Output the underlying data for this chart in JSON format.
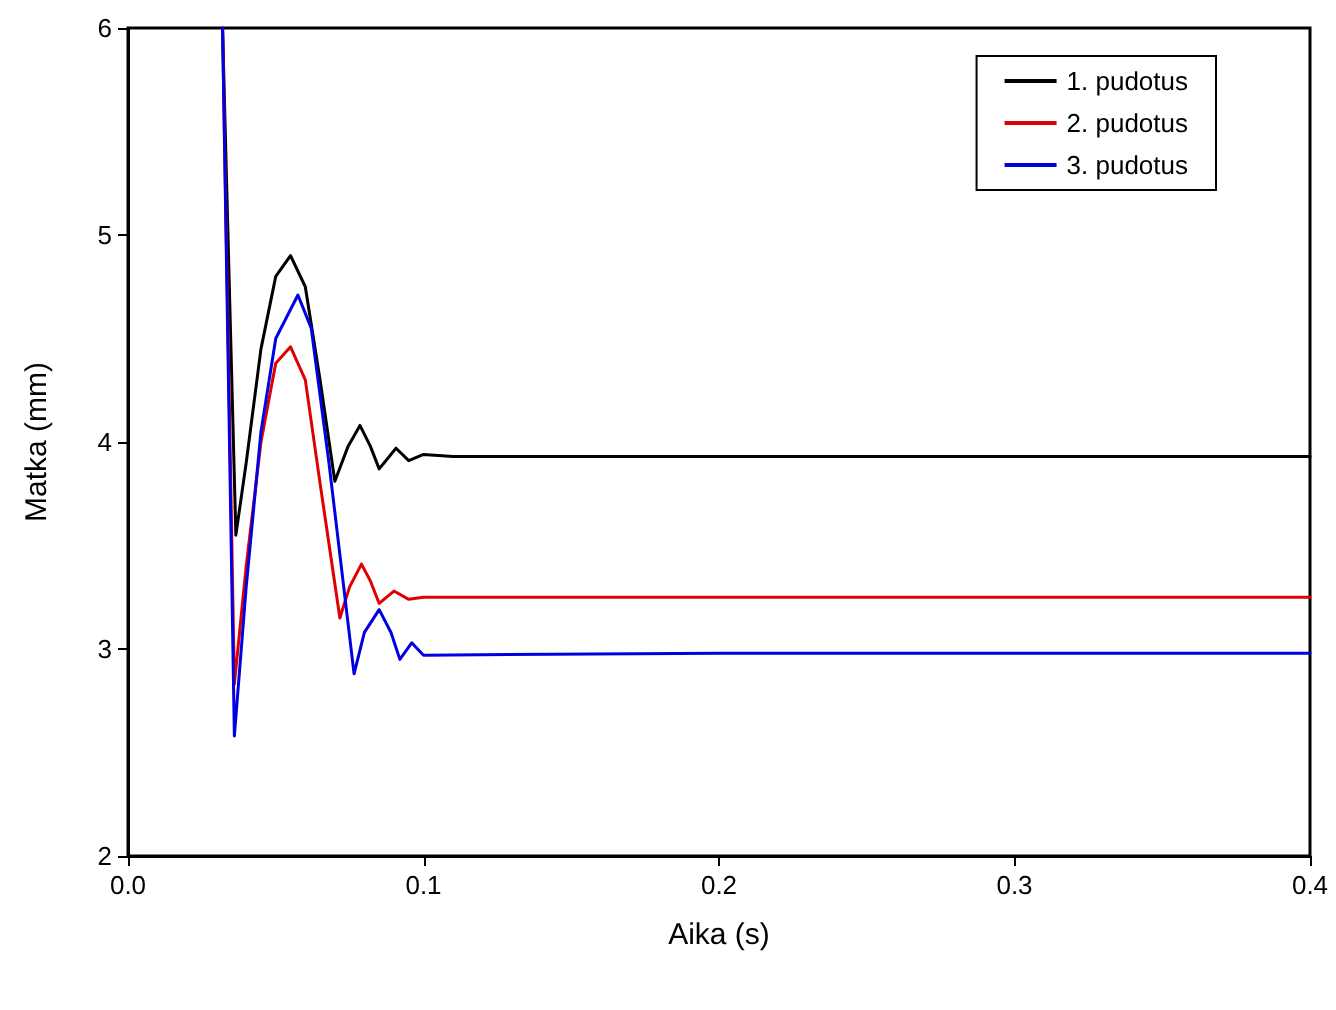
{
  "chart_data": {
    "type": "line",
    "xlabel": "Aika (s)",
    "ylabel": "Matka (mm)",
    "xlim": [
      0,
      0.4
    ],
    "xticks": [
      {
        "value": 0,
        "label": "0.0"
      },
      0.1,
      0.2,
      0.3,
      0.4
    ],
    "ylim": [
      2,
      6
    ],
    "yticks": [
      2,
      3,
      4,
      5,
      6
    ],
    "grid": false,
    "legend": "top right",
    "marker": "none",
    "line_style": "solid",
    "series": [
      {
        "name": "1. pudotus",
        "color": "#000000",
        "x": [
          0.032,
          0.0365,
          0.04,
          0.045,
          0.05,
          0.055,
          0.06,
          0.065,
          0.07,
          0.0745,
          0.0785,
          0.082,
          0.085,
          0.0907,
          0.095,
          0.1,
          0.11,
          0.2,
          0.3,
          0.4
        ],
        "values": [
          6,
          3.55,
          3.9,
          4.45,
          4.8,
          4.9,
          4.75,
          4.3,
          3.81,
          3.98,
          4.08,
          3.98,
          3.87,
          3.97,
          3.91,
          3.94,
          3.93,
          3.93,
          3.93,
          3.93
        ]
      },
      {
        "name": "2. pudotus",
        "color": "#e00000",
        "x": [
          0.032,
          0.036,
          0.04,
          0.045,
          0.05,
          0.055,
          0.06,
          0.065,
          0.0717,
          0.075,
          0.079,
          0.082,
          0.085,
          0.09,
          0.095,
          0.1,
          0.2,
          0.3,
          0.4
        ],
        "values": [
          6,
          2.83,
          3.4,
          4.0,
          4.38,
          4.46,
          4.3,
          3.8,
          3.15,
          3.3,
          3.41,
          3.33,
          3.22,
          3.28,
          3.24,
          3.25,
          3.25,
          3.25,
          3.25
        ]
      },
      {
        "name": "3. pudotus",
        "color": "#0000e0",
        "x": [
          0.032,
          0.036,
          0.04,
          0.045,
          0.05,
          0.0575,
          0.062,
          0.068,
          0.0765,
          0.08,
          0.085,
          0.089,
          0.092,
          0.096,
          0.1,
          0.2,
          0.3,
          0.4
        ],
        "values": [
          6,
          2.58,
          3.3,
          4.05,
          4.5,
          4.71,
          4.55,
          3.9,
          2.88,
          3.08,
          3.19,
          3.08,
          2.95,
          3.03,
          2.97,
          2.98,
          2.98,
          2.98
        ]
      }
    ]
  }
}
